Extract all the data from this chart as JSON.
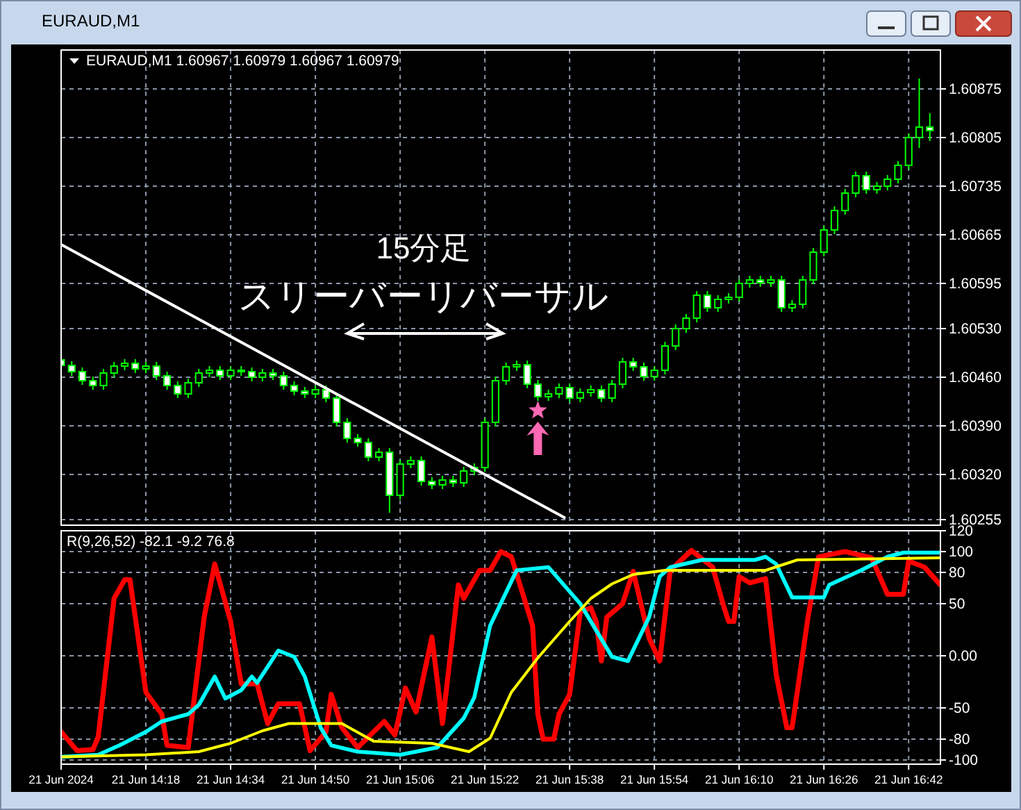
{
  "chart_data": [
    {
      "type": "candlestick",
      "title": "EURAUD,M1",
      "color": "#00ff00",
      "grid": true,
      "tick_labels": "y",
      "annotations": [
        "EURAUD,M1  1.60967 1.60979 1.60967 1.60979",
        "15分足",
        "スリーバーリバーサル"
      ],
      "xlim": [
        "2024-06-21T14:02",
        "2024-06-21T16:48"
      ],
      "xticks": [
        {
          "value": "2024-06-21T14:02",
          "label": null
        },
        {
          "value": "2024-06-21T14:18",
          "label": null
        },
        {
          "value": "2024-06-21T14:34",
          "label": null
        },
        {
          "value": "2024-06-21T14:50",
          "label": null
        },
        {
          "value": "2024-06-21T15:06",
          "label": null
        },
        {
          "value": "2024-06-21T15:22",
          "label": null
        },
        {
          "value": "2024-06-21T15:38",
          "label": null
        },
        {
          "value": "2024-06-21T15:54",
          "label": null
        },
        {
          "value": "2024-06-21T16:10",
          "label": null
        },
        {
          "value": "2024-06-21T16:26",
          "label": null
        },
        {
          "value": "2024-06-21T16:42",
          "label": null
        }
      ],
      "ylim": [
        1.60247,
        1.60931
      ],
      "yticks": [
        1.60875,
        1.60805,
        1.60735,
        1.60665,
        1.60595,
        {
          "value": 1.6053,
          "label": "1.60530"
        },
        {
          "value": 1.6046,
          "label": "1.60460"
        },
        {
          "value": 1.6039,
          "label": "1.60390"
        },
        {
          "value": 1.6032,
          "label": "1.60320"
        },
        1.60255
      ],
      "x": [
        "2024-06-21T14:02",
        "2024-06-21T14:04",
        "2024-06-21T14:06",
        "2024-06-21T14:08",
        "2024-06-21T14:10",
        "2024-06-21T14:12",
        "2024-06-21T14:14",
        "2024-06-21T14:16",
        "2024-06-21T14:18",
        "2024-06-21T14:20",
        "2024-06-21T14:22",
        "2024-06-21T14:24",
        "2024-06-21T14:26",
        "2024-06-21T14:28",
        "2024-06-21T14:30",
        "2024-06-21T14:32",
        "2024-06-21T14:34",
        "2024-06-21T14:36",
        "2024-06-21T14:38",
        "2024-06-21T14:40",
        "2024-06-21T14:42",
        "2024-06-21T14:44",
        "2024-06-21T14:46",
        "2024-06-21T14:48",
        "2024-06-21T14:50",
        "2024-06-21T14:52",
        "2024-06-21T14:54",
        "2024-06-21T14:56",
        "2024-06-21T14:58",
        "2024-06-21T15:00",
        "2024-06-21T15:02",
        "2024-06-21T15:04",
        "2024-06-21T15:06",
        "2024-06-21T15:08",
        "2024-06-21T15:10",
        "2024-06-21T15:12",
        "2024-06-21T15:14",
        "2024-06-21T15:16",
        "2024-06-21T15:18",
        "2024-06-21T15:20",
        "2024-06-21T15:22",
        "2024-06-21T15:24",
        "2024-06-21T15:26",
        "2024-06-21T15:28",
        "2024-06-21T15:30",
        "2024-06-21T15:32",
        "2024-06-21T15:34",
        "2024-06-21T15:36",
        "2024-06-21T15:38",
        "2024-06-21T15:40",
        "2024-06-21T15:42",
        "2024-06-21T15:44",
        "2024-06-21T15:46",
        "2024-06-21T15:48",
        "2024-06-21T15:50",
        "2024-06-21T15:52",
        "2024-06-21T15:54",
        "2024-06-21T15:56",
        "2024-06-21T15:58",
        "2024-06-21T16:00",
        "2024-06-21T16:02",
        "2024-06-21T16:04",
        "2024-06-21T16:06",
        "2024-06-21T16:08",
        "2024-06-21T16:10",
        "2024-06-21T16:12",
        "2024-06-21T16:14",
        "2024-06-21T16:16",
        "2024-06-21T16:18",
        "2024-06-21T16:20",
        "2024-06-21T16:22",
        "2024-06-21T16:24",
        "2024-06-21T16:26",
        "2024-06-21T16:28",
        "2024-06-21T16:30",
        "2024-06-21T16:32",
        "2024-06-21T16:34",
        "2024-06-21T16:36",
        "2024-06-21T16:38",
        "2024-06-21T16:40",
        "2024-06-21T16:42",
        "2024-06-21T16:44",
        "2024-06-21T16:46"
      ],
      "ohlc": [
        [
          1.60485,
          1.60491,
          1.60471,
          1.60477
        ],
        [
          1.60477,
          1.60483,
          1.60462,
          1.60468
        ],
        [
          1.60468,
          1.60474,
          1.60449,
          1.60455
        ],
        [
          1.60455,
          1.60461,
          1.60442,
          1.60448
        ],
        [
          1.60448,
          1.60472,
          1.60442,
          1.60466
        ],
        [
          1.60466,
          1.60482,
          1.6046,
          1.60476
        ],
        [
          1.60476,
          1.60486,
          1.6047,
          1.6048
        ],
        [
          1.6048,
          1.60486,
          1.60466,
          1.60472
        ],
        [
          1.60472,
          1.60482,
          1.60466,
          1.60476
        ],
        [
          1.60476,
          1.60482,
          1.60456,
          1.60462
        ],
        [
          1.60462,
          1.60468,
          1.60442,
          1.60448
        ],
        [
          1.60448,
          1.60454,
          1.6043,
          1.60436
        ],
        [
          1.60436,
          1.60458,
          1.6043,
          1.60452
        ],
        [
          1.60452,
          1.60472,
          1.60446,
          1.60466
        ],
        [
          1.60466,
          1.60476,
          1.6046,
          1.6047
        ],
        [
          1.6047,
          1.60476,
          1.60456,
          1.60462
        ],
        [
          1.60462,
          1.60476,
          1.60456,
          1.6047
        ],
        [
          1.6047,
          1.60476,
          1.60462,
          1.60468
        ],
        [
          1.60468,
          1.60474,
          1.60454,
          1.6046
        ],
        [
          1.6046,
          1.60472,
          1.60454,
          1.60466
        ],
        [
          1.60466,
          1.60472,
          1.60456,
          1.60462
        ],
        [
          1.60462,
          1.60468,
          1.60442,
          1.60448
        ],
        [
          1.60448,
          1.60454,
          1.60434,
          1.6044
        ],
        [
          1.6044,
          1.60446,
          1.6043,
          1.60436
        ],
        [
          1.60436,
          1.60448,
          1.6043,
          1.60442
        ],
        [
          1.60442,
          1.60448,
          1.60424,
          1.6043
        ],
        [
          1.6043,
          1.60436,
          1.60389,
          1.60395
        ],
        [
          1.60395,
          1.60401,
          1.60366,
          1.60372
        ],
        [
          1.60372,
          1.60378,
          1.6036,
          1.60366
        ],
        [
          1.60366,
          1.60372,
          1.60339,
          1.60345
        ],
        [
          1.60345,
          1.60358,
          1.60339,
          1.60352
        ],
        [
          1.60352,
          1.60358,
          1.60265,
          1.6029
        ],
        [
          1.6029,
          1.60341,
          1.60284,
          1.60335
        ],
        [
          1.60335,
          1.60346,
          1.60329,
          1.6034
        ],
        [
          1.6034,
          1.60346,
          1.60304,
          1.6031
        ],
        [
          1.6031,
          1.60316,
          1.60299,
          1.60305
        ],
        [
          1.60305,
          1.60318,
          1.60299,
          1.60312
        ],
        [
          1.60312,
          1.60318,
          1.60302,
          1.60308
        ],
        [
          1.60308,
          1.60331,
          1.60302,
          1.60325
        ],
        [
          1.60325,
          1.60336,
          1.60319,
          1.6033
        ],
        [
          1.6033,
          1.60401,
          1.60324,
          1.60395
        ],
        [
          1.60395,
          1.60461,
          1.60389,
          1.60455
        ],
        [
          1.60455,
          1.60481,
          1.60449,
          1.60475
        ],
        [
          1.60475,
          1.60484,
          1.60469,
          1.60478
        ],
        [
          1.60478,
          1.60484,
          1.60444,
          1.6045
        ],
        [
          1.6045,
          1.60456,
          1.60426,
          1.60432
        ],
        [
          1.60432,
          1.60442,
          1.60426,
          1.60436
        ],
        [
          1.60436,
          1.60451,
          1.6043,
          1.60445
        ],
        [
          1.60445,
          1.60451,
          1.60424,
          1.6043
        ],
        [
          1.6043,
          1.60444,
          1.60424,
          1.60438
        ],
        [
          1.60438,
          1.60448,
          1.60432,
          1.60442
        ],
        [
          1.60442,
          1.60448,
          1.60424,
          1.6043
        ],
        [
          1.6043,
          1.60456,
          1.60424,
          1.6045
        ],
        [
          1.6045,
          1.60488,
          1.60444,
          1.60482
        ],
        [
          1.60482,
          1.60488,
          1.60469,
          1.60475
        ],
        [
          1.60475,
          1.60481,
          1.60455,
          1.60461
        ],
        [
          1.60461,
          1.60476,
          1.60455,
          1.6047
        ],
        [
          1.6047,
          1.60511,
          1.60464,
          1.60505
        ],
        [
          1.60505,
          1.60536,
          1.60499,
          1.6053
        ],
        [
          1.6053,
          1.60551,
          1.60524,
          1.60545
        ],
        [
          1.60545,
          1.60584,
          1.60539,
          1.60578
        ],
        [
          1.60578,
          1.60584,
          1.60554,
          1.6056
        ],
        [
          1.6056,
          1.60578,
          1.60554,
          1.60572
        ],
        [
          1.60572,
          1.60581,
          1.60566,
          1.60575
        ],
        [
          1.60575,
          1.60601,
          1.60569,
          1.60595
        ],
        [
          1.60595,
          1.60606,
          1.60589,
          1.606
        ],
        [
          1.606,
          1.60606,
          1.6059,
          1.60596
        ],
        [
          1.60596,
          1.60606,
          1.6059,
          1.606
        ],
        [
          1.606,
          1.60606,
          1.60554,
          1.6056
        ],
        [
          1.6056,
          1.60571,
          1.60554,
          1.60565
        ],
        [
          1.60565,
          1.60606,
          1.60559,
          1.606
        ],
        [
          1.606,
          1.60646,
          1.60594,
          1.6064
        ],
        [
          1.6064,
          1.60678,
          1.60634,
          1.60672
        ],
        [
          1.60672,
          1.60706,
          1.60666,
          1.607
        ],
        [
          1.607,
          1.60731,
          1.60694,
          1.60725
        ],
        [
          1.60725,
          1.60756,
          1.60719,
          1.6075
        ],
        [
          1.6075,
          1.60756,
          1.60724,
          1.6073
        ],
        [
          1.6073,
          1.60741,
          1.60724,
          1.60735
        ],
        [
          1.60735,
          1.60751,
          1.60729,
          1.60745
        ],
        [
          1.60745,
          1.60771,
          1.60739,
          1.60765
        ],
        [
          1.60765,
          1.60811,
          1.60759,
          1.60805
        ],
        [
          1.60805,
          1.6089,
          1.6079,
          1.6082
        ],
        [
          1.6082,
          1.6084,
          1.608,
          1.60815
        ]
      ],
      "series": [
        {
          "type": "line",
          "color": "#ffffff",
          "x": [
            "2024-06-21T14:02",
            "2024-06-21T15:37"
          ],
          "values": [
            1.60651,
            1.60258
          ]
        }
      ]
    },
    {
      "type": "line",
      "grid": true,
      "annotations": [
        "R(9,26,52) -82.1 -9.2 76.8"
      ],
      "xlim": [
        "2024-06-21T14:02",
        "2024-06-21T16:48"
      ],
      "xticks": [
        {
          "value": "2024-06-21T14:02",
          "label": "21 Jun 2024"
        },
        {
          "value": "2024-06-21T14:18",
          "label": "21 Jun 14:18"
        },
        {
          "value": "2024-06-21T14:34",
          "label": "21 Jun 14:34"
        },
        {
          "value": "2024-06-21T14:50",
          "label": "21 Jun 14:50"
        },
        {
          "value": "2024-06-21T15:06",
          "label": "21 Jun 15:06"
        },
        {
          "value": "2024-06-21T15:22",
          "label": "21 Jun 15:22"
        },
        {
          "value": "2024-06-21T15:38",
          "label": "21 Jun 15:38"
        },
        {
          "value": "2024-06-21T15:54",
          "label": "21 Jun 15:54"
        },
        {
          "value": "2024-06-21T16:10",
          "label": "21 Jun 16:10"
        },
        {
          "value": "2024-06-21T16:26",
          "label": "21 Jun 16:26"
        },
        {
          "value": "2024-06-21T16:42",
          "label": "21 Jun 16:42"
        }
      ],
      "ylim": [
        -104,
        120
      ],
      "yticks": [
        120,
        100,
        80,
        50,
        {
          "value": 0,
          "label": "0.00"
        },
        -50,
        -80,
        -100
      ],
      "series": [
        {
          "color": "#ff0000",
          "x": [
            "2024-06-21T14:02",
            "2024-06-21T14:05",
            "2024-06-21T14:08",
            "2024-06-21T14:09",
            "2024-06-21T14:12",
            "2024-06-21T14:14",
            "2024-06-21T14:15",
            "2024-06-21T14:18",
            "2024-06-21T14:21",
            "2024-06-21T14:22",
            "2024-06-21T14:26",
            "2024-06-21T14:29",
            "2024-06-21T14:31",
            "2024-06-21T14:34",
            "2024-06-21T14:36",
            "2024-06-21T14:39",
            "2024-06-21T14:41",
            "2024-06-21T14:43",
            "2024-06-21T14:47",
            "2024-06-21T14:49",
            "2024-06-21T14:52",
            "2024-06-21T14:53",
            "2024-06-21T14:55",
            "2024-06-21T14:58",
            "2024-06-21T15:03",
            "2024-06-21T15:05",
            "2024-06-21T15:07",
            "2024-06-21T15:09",
            "2024-06-21T15:12",
            "2024-06-21T15:14",
            "2024-06-21T15:17",
            "2024-06-21T15:18",
            "2024-06-21T15:21",
            "2024-06-21T15:23",
            "2024-06-21T15:25",
            "2024-06-21T15:27",
            "2024-06-21T15:31",
            "2024-06-21T15:32",
            "2024-06-21T15:33",
            "2024-06-21T15:35",
            "2024-06-21T15:36",
            "2024-06-21T15:38",
            "2024-06-21T15:40",
            "2024-06-21T15:42",
            "2024-06-21T15:43",
            "2024-06-21T15:44",
            "2024-06-21T15:45",
            "2024-06-21T15:48",
            "2024-06-21T15:50",
            "2024-06-21T15:53",
            "2024-06-21T15:55",
            "2024-06-21T15:57",
            "2024-06-21T16:01",
            "2024-06-21T16:05",
            "2024-06-21T16:07",
            "2024-06-21T16:08",
            "2024-06-21T16:09",
            "2024-06-21T16:10",
            "2024-06-21T16:12",
            "2024-06-21T16:15",
            "2024-06-21T16:17",
            "2024-06-21T16:19",
            "2024-06-21T16:20",
            "2024-06-21T16:23",
            "2024-06-21T16:25",
            "2024-06-21T16:30",
            "2024-06-21T16:35",
            "2024-06-21T16:38",
            "2024-06-21T16:41",
            "2024-06-21T16:42",
            "2024-06-21T16:45",
            "2024-06-21T16:48"
          ],
          "values": [
            -73,
            -91,
            -90,
            -78,
            55,
            73,
            73,
            -35,
            -56,
            -86,
            -88,
            37,
            88,
            33,
            -27,
            -27,
            -65,
            -46,
            -46,
            -91,
            -73,
            -37,
            -69,
            -88,
            -63,
            -76,
            -31,
            -54,
            18,
            -65,
            68,
            55,
            82,
            82,
            100,
            95,
            29,
            -56,
            -80,
            -80,
            -56,
            -37,
            42,
            46,
            33,
            -5,
            37,
            50,
            81,
            17,
            -5,
            82,
            101,
            85,
            49,
            33,
            33,
            76,
            70,
            74,
            -18,
            -69,
            -69,
            37,
            95,
            100,
            94,
            59,
            59,
            91,
            85,
            68
          ]
        },
        {
          "color": "#00ffff",
          "x": [
            "2024-06-21T14:02",
            "2024-06-21T14:09",
            "2024-06-21T14:13",
            "2024-06-21T14:18",
            "2024-06-21T14:21",
            "2024-06-21T14:26",
            "2024-06-21T14:28",
            "2024-06-21T14:31",
            "2024-06-21T14:33",
            "2024-06-21T14:36",
            "2024-06-21T14:38",
            "2024-06-21T14:39",
            "2024-06-21T14:43",
            "2024-06-21T14:46",
            "2024-06-21T14:48",
            "2024-06-21T14:51",
            "2024-06-21T14:53",
            "2024-06-21T14:58",
            "2024-06-21T15:06",
            "2024-06-21T15:13",
            "2024-06-21T15:18",
            "2024-06-21T15:20",
            "2024-06-21T15:23",
            "2024-06-21T15:28",
            "2024-06-21T15:34",
            "2024-06-21T15:40",
            "2024-06-21T15:46",
            "2024-06-21T15:49",
            "2024-06-21T15:53",
            "2024-06-21T15:55",
            "2024-06-21T15:57",
            "2024-06-21T16:03",
            "2024-06-21T16:13",
            "2024-06-21T16:15",
            "2024-06-21T16:17",
            "2024-06-21T16:20",
            "2024-06-21T16:26",
            "2024-06-21T16:27",
            "2024-06-21T16:33",
            "2024-06-21T16:38",
            "2024-06-21T16:41",
            "2024-06-21T16:48"
          ],
          "values": [
            -97,
            -95,
            -86,
            -73,
            -63,
            -56,
            -47,
            -20,
            -41,
            -33,
            -20,
            -26,
            5,
            -1,
            -20,
            -69,
            -86,
            -92,
            -95,
            -88,
            -60,
            -40,
            29,
            82,
            85,
            50,
            -1,
            -5,
            37,
            76,
            85,
            92,
            92,
            95,
            88,
            56,
            56,
            68,
            82,
            95,
            99,
            99
          ]
        },
        {
          "color": "#ffff00",
          "x": [
            "2024-06-21T14:02",
            "2024-06-21T14:18",
            "2024-06-21T14:28",
            "2024-06-21T14:34",
            "2024-06-21T14:40",
            "2024-06-21T14:45",
            "2024-06-21T14:55",
            "2024-06-21T15:01",
            "2024-06-21T15:12",
            "2024-06-21T15:19",
            "2024-06-21T15:23",
            "2024-06-21T15:27",
            "2024-06-21T15:32",
            "2024-06-21T15:38",
            "2024-06-21T15:42",
            "2024-06-21T15:46",
            "2024-06-21T15:50",
            "2024-06-21T15:56",
            "2024-06-21T16:15",
            "2024-06-21T16:21",
            "2024-06-21T16:48"
          ],
          "values": [
            -97,
            -95,
            -92,
            -84,
            -72,
            -65,
            -65,
            -82,
            -84,
            -92,
            -79,
            -35,
            -2,
            33,
            55,
            69,
            78,
            82,
            82,
            92,
            94
          ]
        }
      ]
    }
  ]
}
